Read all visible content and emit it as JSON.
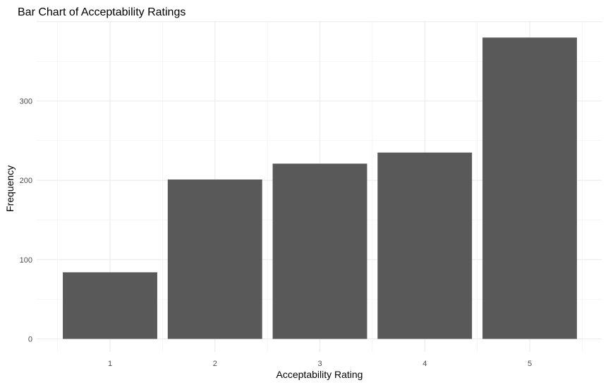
{
  "chart_data": {
    "type": "bar",
    "title": "Bar Chart of Acceptability Ratings",
    "xlabel": "Acceptability Rating",
    "ylabel": "Frequency",
    "categories": [
      "1",
      "2",
      "3",
      "4",
      "5"
    ],
    "values": [
      84,
      201,
      221,
      235,
      380
    ],
    "ylim": [
      0,
      400
    ],
    "yticks": [
      0,
      100,
      200,
      300
    ],
    "grid": true,
    "legend": "none",
    "bar_color": "#595959",
    "background": "#ffffff",
    "grid_color": "#ebebeb"
  }
}
